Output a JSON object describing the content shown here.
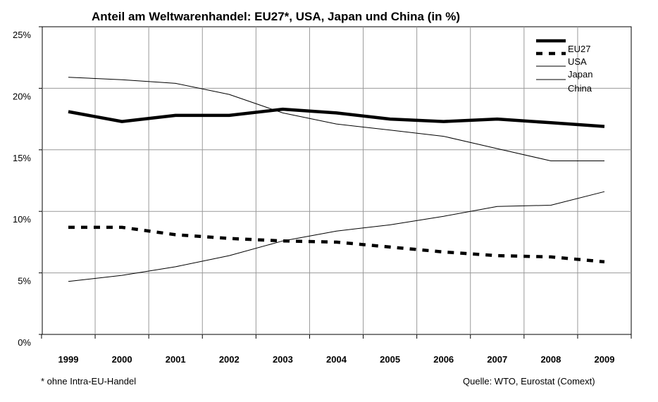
{
  "chart_data": {
    "type": "line",
    "title": "Anteil am Weltwarenhandel: EU27*, USA, Japan und China (in %)",
    "xlabel": "",
    "ylabel": "",
    "categories": [
      "1999",
      "2000",
      "2001",
      "2002",
      "2003",
      "2004",
      "2005",
      "2006",
      "2007",
      "2008",
      "2009"
    ],
    "ylim": [
      0,
      25
    ],
    "yticks": [
      "0%",
      "5%",
      "10%",
      "15%",
      "20%",
      "25%"
    ],
    "grid": true,
    "legend_position": "top-right",
    "series": [
      {
        "name": "EU27",
        "style": "thick-solid",
        "values": [
          18.1,
          17.3,
          17.8,
          17.8,
          18.3,
          18.0,
          17.5,
          17.3,
          17.5,
          17.2,
          16.9
        ]
      },
      {
        "name": "USA",
        "style": "thick-dashed",
        "values": [
          8.7,
          8.7,
          8.1,
          7.8,
          7.6,
          7.5,
          7.1,
          6.7,
          6.4,
          6.3,
          5.9
        ]
      },
      {
        "name": "Japan",
        "style": "thin-solid",
        "values": [
          20.9,
          20.7,
          20.4,
          19.5,
          18.0,
          17.1,
          16.6,
          16.1,
          15.1,
          14.1,
          14.1
        ]
      },
      {
        "name": "China",
        "style": "thin-solid",
        "values": [
          4.3,
          4.8,
          5.5,
          6.4,
          7.6,
          8.4,
          8.9,
          9.6,
          10.4,
          10.5,
          11.6
        ]
      }
    ]
  },
  "footnote": "* ohne Intra-EU-Handel",
  "source": "Quelle: WTO, Eurostat (Comext)",
  "colors": {
    "line": "#000000",
    "grid": "#999999"
  }
}
